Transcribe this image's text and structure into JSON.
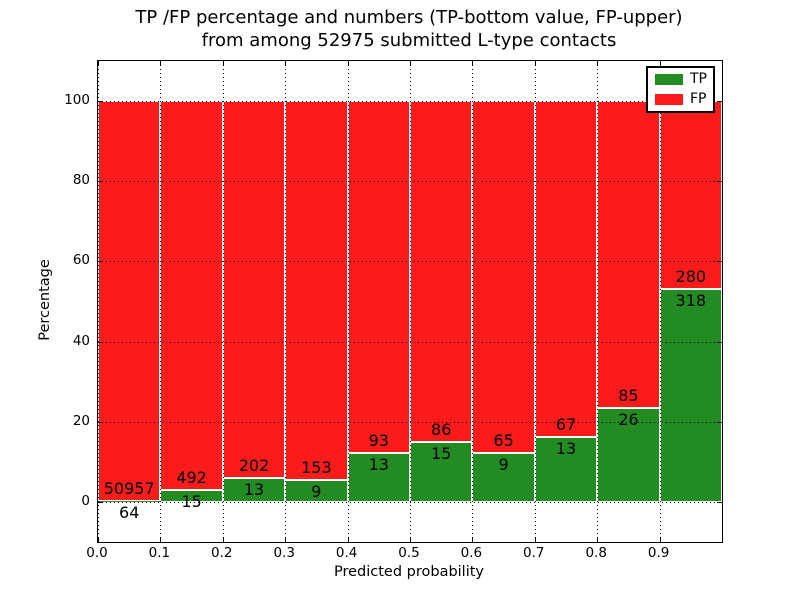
{
  "title": {
    "line1": "TP /FP percentage and numbers (TP-bottom value, FP-upper)",
    "line2": "from among 52975 submitted L-type contacts"
  },
  "axes": {
    "x_label": "Predicted probability",
    "y_label": "Percentage",
    "x_ticks": [
      "0.0",
      "0.1",
      "0.2",
      "0.3",
      "0.4",
      "0.5",
      "0.6",
      "0.7",
      "0.8",
      "0.9"
    ],
    "y_ticks": [
      "0",
      "20",
      "40",
      "60",
      "80",
      "100"
    ],
    "x_tick_values": [
      0,
      0.1,
      0.2,
      0.3,
      0.4,
      0.5,
      0.6,
      0.7,
      0.8,
      0.9
    ],
    "y_tick_values": [
      0,
      20,
      40,
      60,
      80,
      100
    ],
    "xlim": [
      0,
      1
    ],
    "ylim": [
      -10,
      110
    ],
    "grid": "dotted"
  },
  "legend": {
    "position": "upper right",
    "items": [
      {
        "label": "TP",
        "color": "#228B22"
      },
      {
        "label": "FP",
        "color": "#FB1B1B"
      }
    ]
  },
  "chart_data": {
    "type": "bar",
    "stacked": true,
    "normalized_to": 100,
    "title": "TP /FP percentage and numbers (TP-bottom value, FP-upper) from among 52975 submitted L-type contacts",
    "xlabel": "Predicted probability",
    "ylabel": "Percentage",
    "total_contacts": 52975,
    "bin_width": 0.1,
    "bin_starts": [
      0.0,
      0.1,
      0.2,
      0.3,
      0.4,
      0.5,
      0.6,
      0.7,
      0.8,
      0.9
    ],
    "series": [
      {
        "name": "TP",
        "color": "#228B22",
        "counts": [
          64,
          15,
          13,
          9,
          13,
          15,
          9,
          13,
          26,
          318
        ]
      },
      {
        "name": "FP",
        "color": "#FB1B1B",
        "counts": [
          50957,
          492,
          202,
          153,
          93,
          86,
          65,
          67,
          85,
          280
        ]
      }
    ],
    "bar_edge_color": "#ffffff"
  }
}
